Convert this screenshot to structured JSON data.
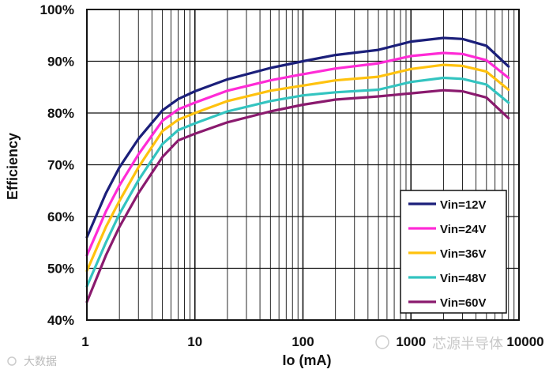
{
  "chart_data": {
    "type": "line",
    "xlabel": "Io (mA)",
    "ylabel": "Efficiency",
    "xscale": "log",
    "xlim": [
      1,
      10000
    ],
    "ylim": [
      40,
      100
    ],
    "x_ticks": [
      "1",
      "10",
      "100",
      "1000",
      "10000"
    ],
    "y_ticks": [
      "40%",
      "50%",
      "60%",
      "70%",
      "80%",
      "90%",
      "100%"
    ],
    "grid": true,
    "legend_position": "bottom-right",
    "series": [
      {
        "name": "Vin=12V",
        "color": "#1b1f7a",
        "x": [
          1,
          1.5,
          2,
          3,
          5,
          7,
          10,
          20,
          50,
          100,
          200,
          500,
          1000,
          2000,
          3000,
          5000,
          8000
        ],
        "y": [
          56,
          64.5,
          69.5,
          75,
          80.5,
          82.7,
          84.2,
          86.5,
          88.7,
          90,
          91.2,
          92.2,
          93.8,
          94.5,
          94.3,
          93,
          89
        ]
      },
      {
        "name": "Vin=24V",
        "color": "#ff2bd6",
        "x": [
          1,
          1.5,
          2,
          3,
          5,
          7,
          10,
          20,
          50,
          100,
          200,
          500,
          1000,
          2000,
          3000,
          5000,
          8000
        ],
        "y": [
          52.5,
          61,
          66,
          72,
          78.5,
          80.7,
          82,
          84.3,
          86.3,
          87.5,
          88.6,
          89.6,
          91,
          91.6,
          91.4,
          90.2,
          86.8
        ]
      },
      {
        "name": "Vin=36V",
        "color": "#ffc20e",
        "x": [
          1,
          1.5,
          2,
          3,
          5,
          7,
          10,
          20,
          50,
          100,
          200,
          500,
          1000,
          2000,
          3000,
          5000,
          8000
        ],
        "y": [
          49.5,
          58,
          63,
          69.5,
          76.5,
          78.7,
          80,
          82.3,
          84.3,
          85.3,
          86.3,
          87,
          88.5,
          89.3,
          89.1,
          88,
          84.5
        ]
      },
      {
        "name": "Vin=48V",
        "color": "#33c4c0",
        "x": [
          1,
          1.5,
          2,
          3,
          5,
          7,
          10,
          20,
          50,
          100,
          200,
          500,
          1000,
          2000,
          3000,
          5000,
          8000
        ],
        "y": [
          46.5,
          55,
          60.5,
          67,
          74,
          76.7,
          78,
          80.3,
          82.3,
          83.4,
          84,
          84.5,
          86,
          86.8,
          86.6,
          85.5,
          82
        ]
      },
      {
        "name": "Vin=60V",
        "color": "#8a1a6e",
        "x": [
          1,
          1.5,
          2,
          3,
          5,
          7,
          10,
          20,
          50,
          100,
          200,
          500,
          1000,
          2000,
          3000,
          5000,
          8000
        ],
        "y": [
          43.5,
          52.5,
          58,
          64.5,
          71.5,
          74.7,
          76,
          78.2,
          80.3,
          81.6,
          82.6,
          83.2,
          83.8,
          84.4,
          84.2,
          83,
          79
        ]
      }
    ]
  },
  "watermarks": [
    "大数据",
    "芯源半导体"
  ]
}
